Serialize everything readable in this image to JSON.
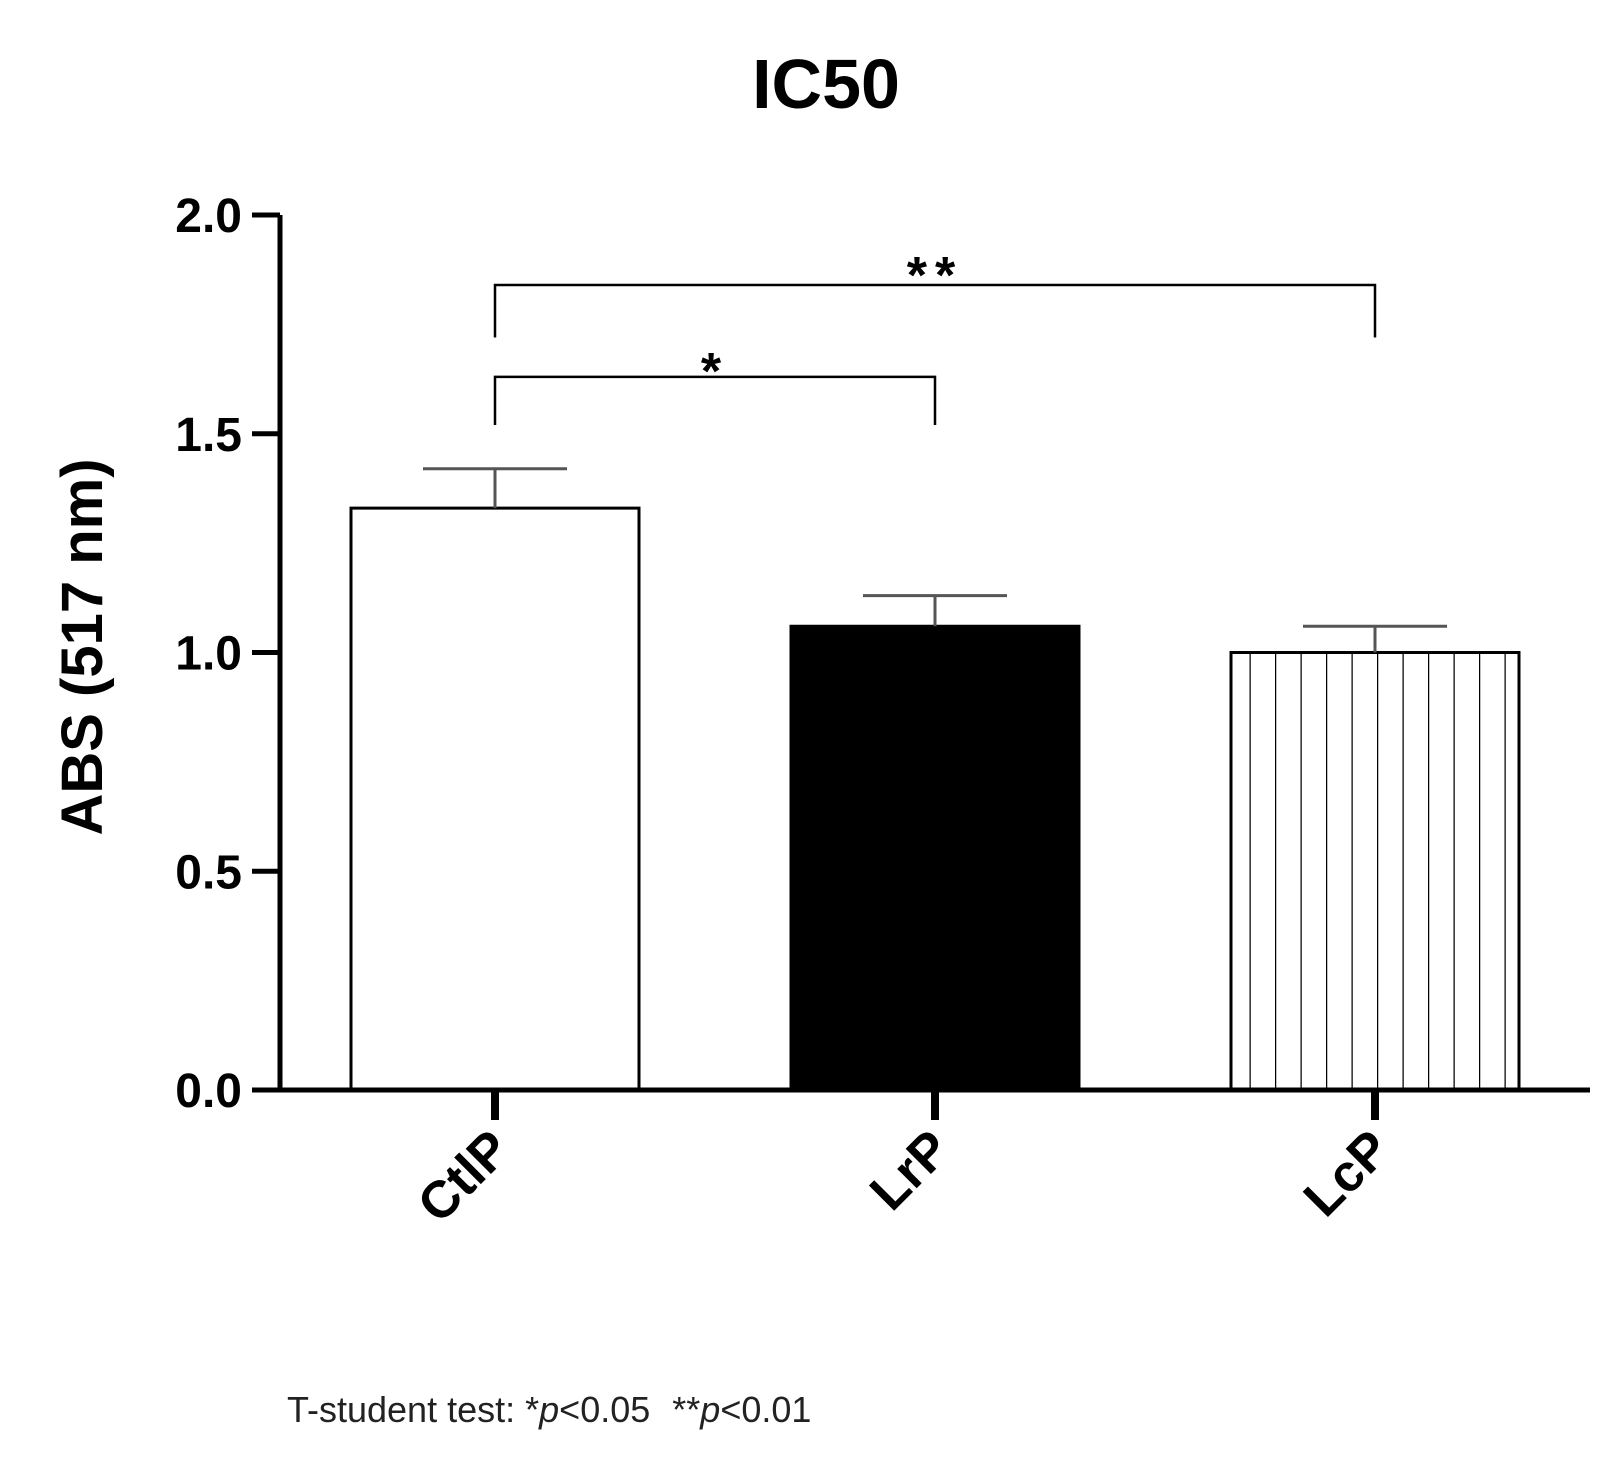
{
  "chart_data": {
    "type": "bar",
    "title": "IC50",
    "ylabel": "ABS (517 nm)",
    "xlabel": "",
    "categories": [
      "CtlP",
      "LrP",
      "LcP"
    ],
    "values": [
      1.33,
      1.06,
      1.0
    ],
    "errors": [
      0.09,
      0.07,
      0.06
    ],
    "fills": [
      "white",
      "black",
      "vertical-stripes"
    ],
    "ylim": [
      0,
      2.0
    ],
    "yticks": [
      "0.0",
      "0.5",
      "1.0",
      "1.5",
      "2.0"
    ],
    "grid": false,
    "legend": "none",
    "annotations": [
      {
        "from": "CtlP",
        "to": "LrP",
        "label": "*"
      },
      {
        "from": "CtlP",
        "to": "LcP",
        "label": "**"
      }
    ],
    "note": {
      "prefix": "T-student test: ",
      "s1": "*",
      "p1": "p",
      "v1": "<0.05",
      "s2": "**",
      "p2": "p",
      "v2": "<0.01"
    }
  },
  "colors": {
    "axis": "#000000",
    "bar_outline": "#000000",
    "black_fill": "#000000",
    "error_bar": "#555555"
  }
}
